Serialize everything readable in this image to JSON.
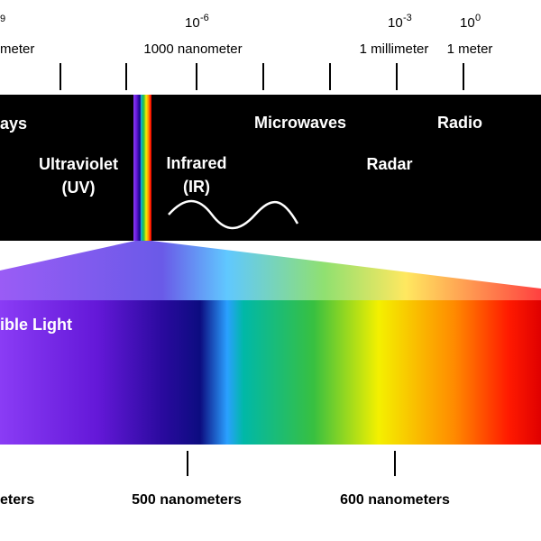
{
  "scale": {
    "left_exponent": "9",
    "left_label": "meter",
    "marks": [
      {
        "base": "10",
        "exponent": "-6",
        "label": "1000 nanometer"
      },
      {
        "base": "10",
        "exponent": "-3",
        "label": "1 millimeter"
      },
      {
        "base": "10",
        "exponent": "0",
        "label": "1 meter"
      }
    ]
  },
  "bands": {
    "rays": "ays",
    "uv": [
      "Ultraviolet",
      "(UV)"
    ],
    "ir": [
      "Infrared",
      "(IR)"
    ],
    "microwaves": "Microwaves",
    "radio": "Radio",
    "radar": "Radar"
  },
  "visible": {
    "title": "ible Light",
    "labels": [
      "eters",
      "500 nanometers",
      "600 nanometers"
    ]
  }
}
